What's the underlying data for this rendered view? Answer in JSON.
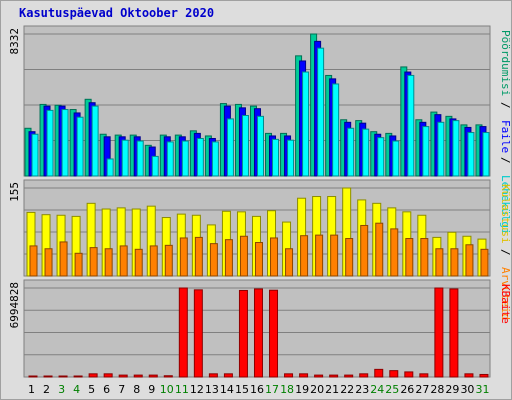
{
  "chart_data": {
    "type": "bar",
    "title": "Kasutuspäevad Oktoober 2020",
    "days": [
      "1",
      "2",
      "3",
      "4",
      "5",
      "6",
      "7",
      "8",
      "9",
      "10",
      "11",
      "12",
      "13",
      "14",
      "15",
      "16",
      "17",
      "18",
      "19",
      "20",
      "21",
      "22",
      "23",
      "24",
      "25",
      "26",
      "27",
      "28",
      "29",
      "30",
      "31"
    ],
    "weekend_days": [
      "3",
      "4",
      "10",
      "11",
      "17",
      "18",
      "24",
      "25",
      "31"
    ],
    "panels": [
      {
        "id": "top",
        "ymax_label": "8332",
        "ylim": [
          0,
          8332
        ],
        "right_labels": [
          "Pöördumisi",
          "Faile",
          "Lehekülgi"
        ],
        "series": [
          {
            "name": "Pöördumisi",
            "color": "#00cc99",
            "values": [
              2800,
              4200,
              4150,
              3900,
              4500,
              2450,
              2400,
              2400,
              1800,
              2400,
              2400,
              2650,
              2350,
              4250,
              4200,
              4100,
              2500,
              2500,
              7050,
              8332,
              5900,
              3300,
              3250,
              2600,
              2500,
              6400,
              3300,
              3750,
              3500,
              3000,
              3000
            ]
          },
          {
            "name": "Faile",
            "color": "#0000ff",
            "values": [
              2600,
              4100,
              4100,
              3700,
              4300,
              2300,
              2300,
              2300,
              1700,
              2300,
              2300,
              2500,
              2200,
              4100,
              4000,
              3950,
              2350,
              2350,
              6750,
              7900,
              5700,
              3150,
              3100,
              2450,
              2350,
              6100,
              3150,
              3600,
              3350,
              2850,
              2900
            ]
          },
          {
            "name": "Lehekülgi",
            "color": "#00ffff",
            "values": [
              2450,
              3850,
              3900,
              3450,
              4100,
              1000,
              2100,
              2050,
              1150,
              2000,
              2050,
              2200,
              2000,
              3350,
              3550,
              3500,
              2150,
              2100,
              6100,
              7500,
              5400,
              2800,
              2750,
              2250,
              2050,
              5900,
              2900,
              3150,
              3250,
              2550,
              2550
            ]
          }
        ]
      },
      {
        "id": "middle",
        "ymax_label": "155",
        "ylim": [
          0,
          155
        ],
        "right_labels": [
          "Külastusi",
          "Arvuteid"
        ],
        "series": [
          {
            "name": "Külastusi",
            "color": "#ffff00",
            "values": [
              112,
              108,
              107,
              105,
              128,
              118,
              120,
              118,
              123,
              103,
              109,
              107,
              90,
              114,
              113,
              105,
              115,
              95,
              137,
              140,
              140,
              155,
              134,
              128,
              120,
              113,
              107,
              68,
              77,
              70,
              65
            ]
          },
          {
            "name": "Arvuteid",
            "color": "#ff8000",
            "values": [
              53,
              48,
              60,
              40,
              50,
              48,
              53,
              47,
              53,
              54,
              67,
              68,
              57,
              64,
              70,
              59,
              67,
              48,
              71,
              72,
              72,
              66,
              89,
              93,
              83,
              66,
              66,
              48,
              48,
              55,
              47
            ]
          }
        ]
      },
      {
        "id": "bottom",
        "ymax_label": "6994828",
        "ylim": [
          0,
          6994828
        ],
        "right_labels": [
          "KBaite"
        ],
        "series": [
          {
            "name": "KBaite",
            "color": "#ff0000",
            "values": [
              60000,
              60000,
              60000,
              60000,
              250000,
              250000,
              150000,
              150000,
              150000,
              100000,
              6994828,
              6850000,
              250000,
              250000,
              6800000,
              6920000,
              6820000,
              250000,
              250000,
              150000,
              150000,
              150000,
              250000,
              600000,
              500000,
              400000,
              250000,
              6994828,
              6920000,
              250000,
              200000
            ]
          }
        ]
      }
    ]
  }
}
